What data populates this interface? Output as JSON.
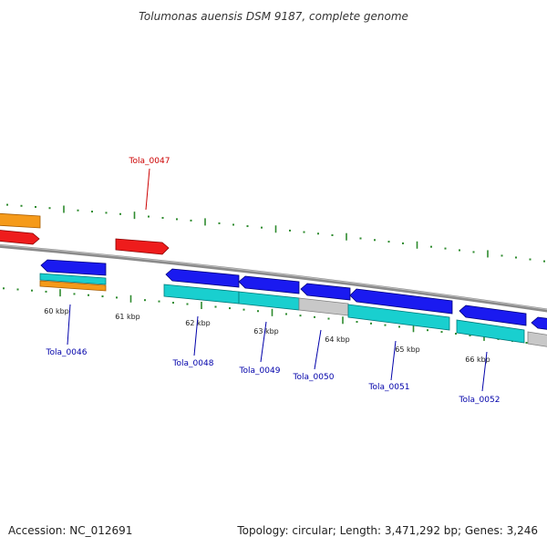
{
  "title": "Tolumonas auensis DSM 9187, complete genome",
  "accession": "Accession: NC_012691",
  "topology": "Topology: circular; Length: 3,471,292 bp; Genes: 3,246",
  "colors": {
    "backbone": "#808080",
    "tick": "#2e8b2e",
    "gene_label_blue": "#0000aa",
    "gene_label_red": "#cc0000",
    "forward_cds": "#ff0000",
    "forward_gene": "#ff8c00",
    "reverse_cds": "#0000ff",
    "reverse_gene": "#00c8c8",
    "reverse_other": "#c0c0c0"
  },
  "scale_labels": [
    "60 kbp",
    "61 kbp",
    "62 kbp",
    "63 kbp",
    "64 kbp",
    "65 kbp",
    "66 kbp"
  ],
  "gene_labels": [
    {
      "text": "Tola_0047",
      "color": "red"
    },
    {
      "text": "Tola_0046",
      "color": "blue"
    },
    {
      "text": "Tola_0048",
      "color": "blue"
    },
    {
      "text": "Tola_0049",
      "color": "blue"
    },
    {
      "text": "Tola_0050",
      "color": "blue"
    },
    {
      "text": "Tola_0051",
      "color": "blue"
    },
    {
      "text": "Tola_0052",
      "color": "blue"
    }
  ]
}
